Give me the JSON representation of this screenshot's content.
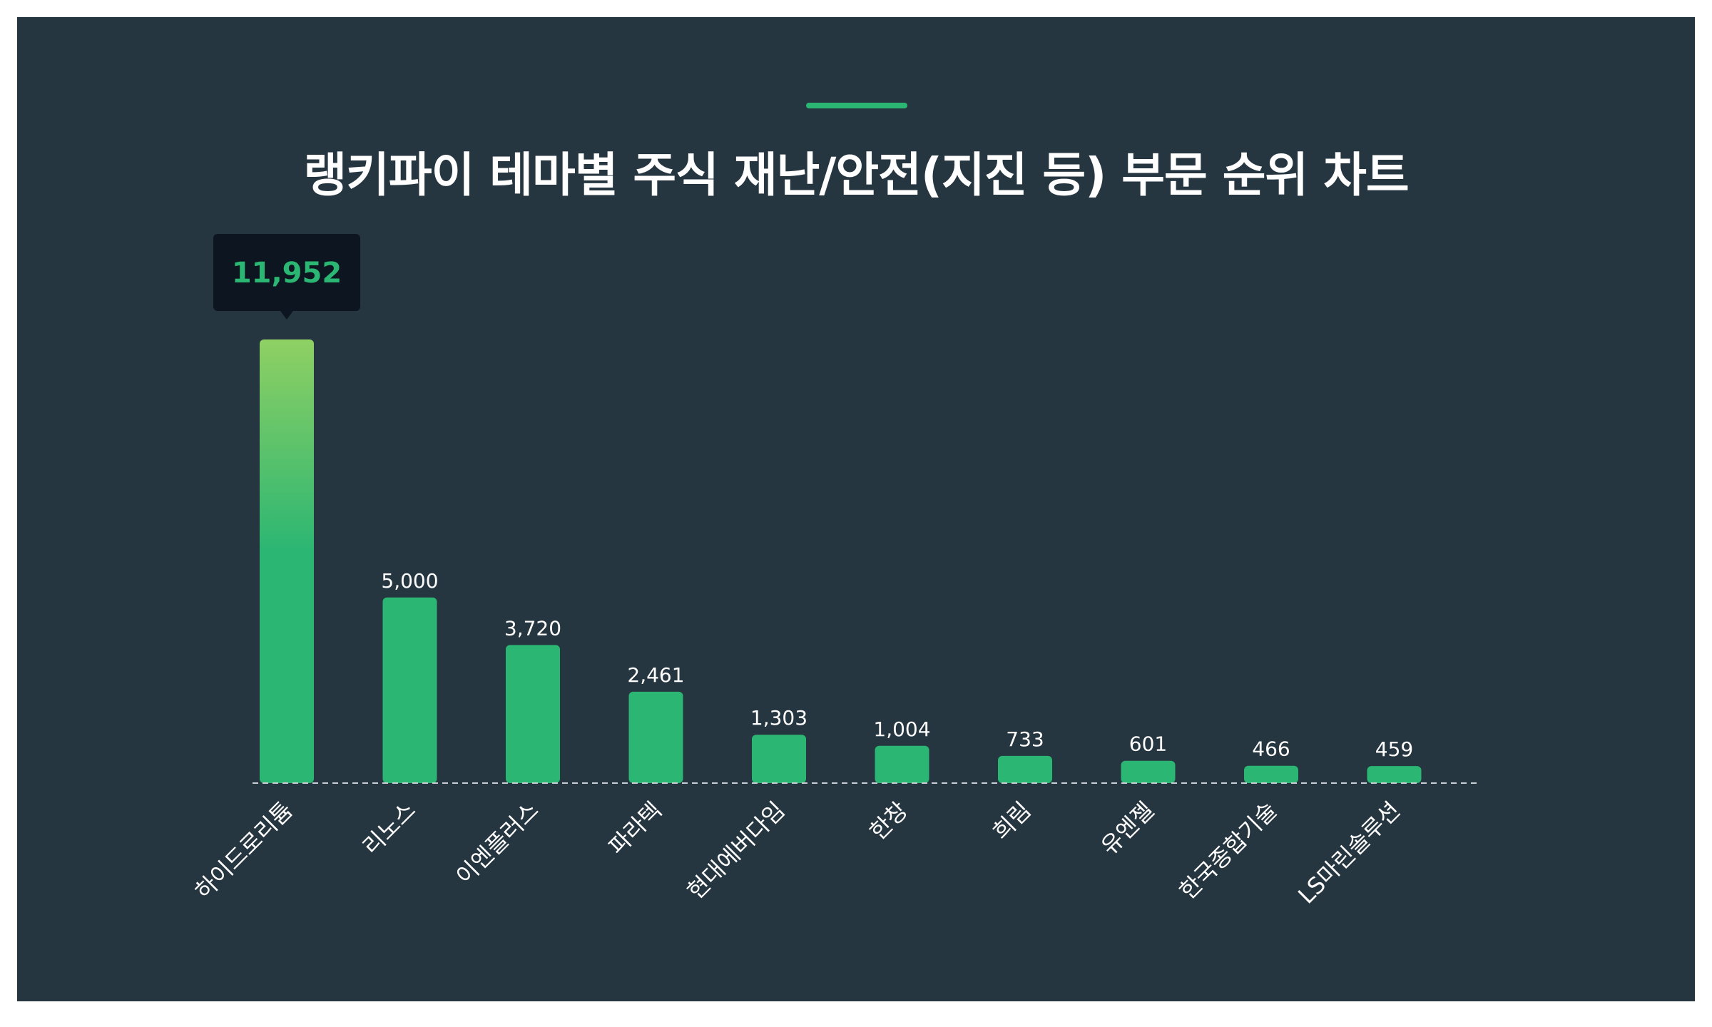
{
  "title": "랭키파이 테마별 주식 재난/안전(지진 등) 부문 순위 차트",
  "colors": {
    "background": "#263641",
    "bar": "#2bb673",
    "bar_top_gradient": "#8fd063",
    "accent": "#2bb673",
    "tooltip_bg": "#0d1620",
    "baseline": "#c8ced3"
  },
  "tooltip": {
    "label": "11,952",
    "category_index": 0
  },
  "chart_data": {
    "type": "bar",
    "title": "랭키파이 테마별 주식 재난/안전(지진 등) 부문 순위 차트",
    "categories": [
      "하이드로리튬",
      "리노스",
      "이엔플러스",
      "파라텍",
      "현대에버다임",
      "한창",
      "희림",
      "유엔젤",
      "한국종합기술",
      "LS마린솔루션"
    ],
    "values": [
      11952,
      5000,
      3720,
      2461,
      1303,
      1004,
      733,
      601,
      466,
      459
    ],
    "value_labels": [
      "",
      "5,000",
      "3,720",
      "2,461",
      "1,303",
      "1,004",
      "733",
      "601",
      "466",
      "459"
    ],
    "ylim": [
      0,
      11952
    ],
    "grid": false,
    "legend": "none"
  }
}
